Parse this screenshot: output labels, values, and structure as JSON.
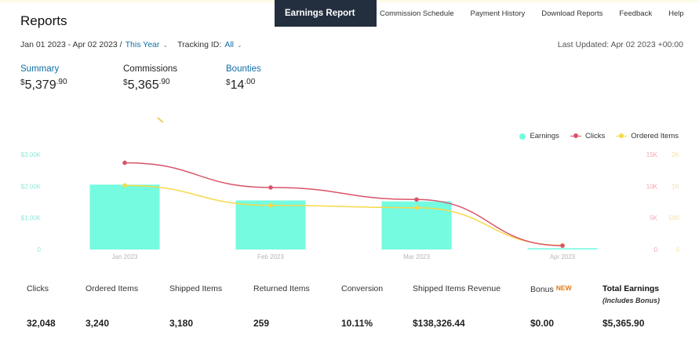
{
  "page": {
    "title": "Reports"
  },
  "nav": {
    "active": "Earnings Report",
    "items": [
      "Commission Schedule",
      "Payment History",
      "Download Reports",
      "Feedback",
      "Help"
    ]
  },
  "filters": {
    "date_range": "Jan 01 2023 - Apr 02 2023 /",
    "period": "This Year",
    "tracking_label": "Tracking ID:",
    "tracking_value": "All",
    "last_updated": "Last Updated: Apr 02 2023 +00:00"
  },
  "summary": [
    {
      "label": "Summary",
      "currency": "$",
      "whole": "5,379",
      "cents": ".90",
      "is_link": true
    },
    {
      "label": "Commissions",
      "currency": "$",
      "whole": "5,365",
      "cents": ".90",
      "is_link": false
    },
    {
      "label": "Bounties",
      "currency": "$",
      "whole": "14",
      "cents": ".00",
      "is_link": true
    }
  ],
  "legend": {
    "earnings": "Earnings",
    "clicks": "Clicks",
    "ordered": "Ordered Items"
  },
  "colors": {
    "earnings": "#74fbe0",
    "clicks": "#d9546a",
    "ordered": "#f7d84a",
    "nav_bg": "#232f3e",
    "link": "#0f6fa6",
    "new_badge": "#e47911"
  },
  "chart_data": {
    "type": "bar",
    "categories": [
      "Jan 2023",
      "Feb 2023",
      "Mar 2023",
      "Apr 2023"
    ],
    "series": [
      {
        "name": "Earnings",
        "type": "bar",
        "axis": "left",
        "values": [
          2050,
          1550,
          1520,
          40
        ]
      },
      {
        "name": "Clicks",
        "type": "line",
        "axis": "right1",
        "values": [
          13700,
          9800,
          7900,
          600
        ]
      },
      {
        "name": "Ordered Items",
        "type": "line",
        "axis": "right2",
        "values": [
          1350,
          930,
          880,
          90
        ]
      }
    ],
    "y_left": {
      "ticks": [
        "$3.00K",
        "$2.00K",
        "$1.00K",
        "0"
      ],
      "max": 3000
    },
    "y_right1": {
      "ticks": [
        "15K",
        "10K",
        "5K",
        "0"
      ],
      "max": 15000
    },
    "y_right2": {
      "ticks": [
        "2K",
        "1K",
        "500",
        "0"
      ],
      "max": 2000
    },
    "legend_position": "top-right",
    "grid": false
  },
  "metrics": {
    "headers": [
      "Clicks",
      "Ordered Items",
      "Shipped Items",
      "Returned Items",
      "Conversion",
      "Shipped Items Revenue",
      "Bonus",
      "Total Earnings"
    ],
    "bonus_badge": "NEW",
    "total_sub": "(Includes Bonus)",
    "values": [
      "32,048",
      "3,240",
      "3,180",
      "259",
      "10.11%",
      "$138,326.44",
      "$0.00",
      "$5,365.90"
    ]
  }
}
